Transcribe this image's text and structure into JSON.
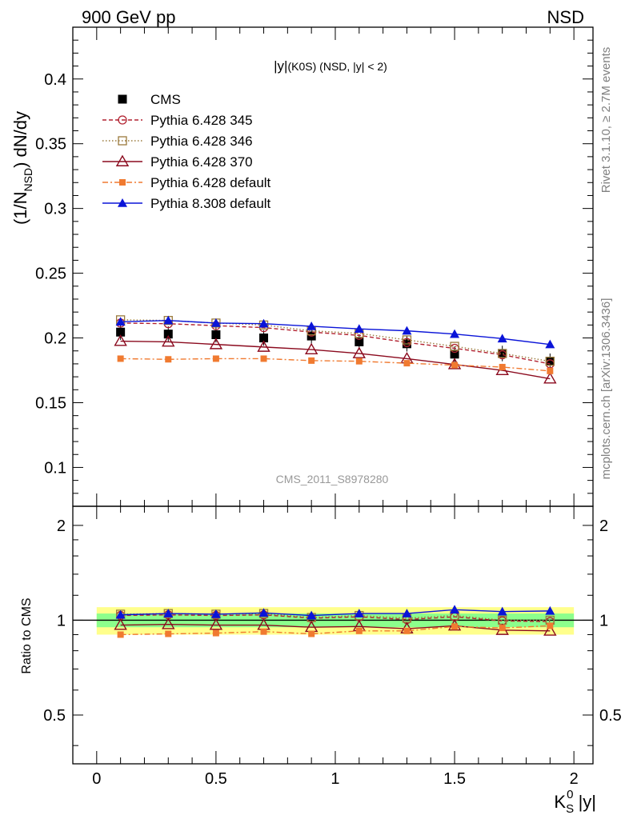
{
  "header": {
    "left": "900 GeV pp",
    "right": "NSD"
  },
  "side_text": {
    "rivet": "Rivet 3.1.10, ≥ 2.7M events",
    "mcplots": "mcplots.cern.ch [arXiv:1306.3436]"
  },
  "chart_data": [
    {
      "type": "line",
      "title": "|y|(K0S) (NSD, |y| < 2)",
      "ylabel": "(1/N_NSD) dN/dy",
      "watermark": "CMS_2011_S8978280",
      "xlim": [
        -0.1,
        2.08
      ],
      "ylim": [
        0.07,
        0.44
      ],
      "yticks": [
        0.1,
        0.15,
        0.2,
        0.25,
        0.3,
        0.35,
        0.4
      ],
      "ytick_labels": [
        "0.1",
        "0.15",
        "0.2",
        "0.25",
        "0.3",
        "0.35",
        "0.4"
      ],
      "legend_position": "top-left",
      "x": [
        0.1,
        0.3,
        0.5,
        0.7,
        0.9,
        1.1,
        1.3,
        1.5,
        1.7,
        1.9
      ],
      "series": [
        {
          "name": "CMS",
          "color": "#000000",
          "marker": "filled-square",
          "line": "none",
          "values": [
            0.2045,
            0.203,
            0.2025,
            0.2,
            0.2015,
            0.197,
            0.1955,
            0.1875,
            0.188,
            0.182
          ],
          "errors": [
            0.006,
            0.006,
            0.006,
            0.006,
            0.006,
            0.006,
            0.006,
            0.006,
            0.006,
            0.006
          ]
        },
        {
          "name": "Pythia 6.428 345",
          "color": "#b22230",
          "marker": "open-circle",
          "line": "dashed",
          "values": [
            0.2115,
            0.211,
            0.2095,
            0.208,
            0.2045,
            0.202,
            0.1965,
            0.192,
            0.187,
            0.18
          ]
        },
        {
          "name": "Pythia 6.428 346",
          "color": "#9a7a3c",
          "marker": "open-square",
          "line": "dotted",
          "values": [
            0.214,
            0.2135,
            0.2115,
            0.21,
            0.2055,
            0.2035,
            0.1985,
            0.1935,
            0.188,
            0.182
          ]
        },
        {
          "name": "Pythia 6.428 370",
          "color": "#8b0a1e",
          "marker": "open-triangle",
          "line": "solid",
          "values": [
            0.1975,
            0.197,
            0.195,
            0.193,
            0.191,
            0.188,
            0.184,
            0.1795,
            0.175,
            0.1685
          ]
        },
        {
          "name": "Pythia 6.428 default",
          "color": "#f07a30",
          "marker": "small-filled-square",
          "line": "dashdot",
          "values": [
            0.184,
            0.1835,
            0.184,
            0.184,
            0.1825,
            0.182,
            0.1805,
            0.179,
            0.1775,
            0.1745
          ]
        },
        {
          "name": "Pythia 8.308 default",
          "color": "#0a14d8",
          "marker": "filled-triangle",
          "line": "solid",
          "values": [
            0.2125,
            0.2135,
            0.2115,
            0.211,
            0.209,
            0.207,
            0.2055,
            0.203,
            0.1995,
            0.195
          ]
        }
      ]
    },
    {
      "type": "line",
      "ylabel": "Ratio to CMS",
      "xlabel": "K0S |y|",
      "xlim": [
        -0.1,
        2.08
      ],
      "ylim": [
        0.35,
        2.3
      ],
      "xticks": [
        0,
        0.5,
        1,
        1.5,
        2
      ],
      "xtick_labels": [
        "0",
        "0.5",
        "1",
        "1.5",
        "2"
      ],
      "yticks": [
        0.5,
        1,
        2
      ],
      "ytick_labels": [
        "0.5",
        "1",
        "2"
      ],
      "bands": [
        {
          "color": "#ffff8c",
          "lower": 0.9,
          "upper": 1.1,
          "xrange": [
            0.0,
            2.0
          ]
        },
        {
          "color": "#8cff8c",
          "lower": 0.95,
          "upper": 1.05,
          "xrange": [
            0.0,
            2.0
          ]
        }
      ],
      "reference_line": 1,
      "x": [
        0.1,
        0.3,
        0.5,
        0.7,
        0.9,
        1.1,
        1.3,
        1.5,
        1.7,
        1.9
      ],
      "series": [
        {
          "name": "Pythia 6.428 345",
          "values": [
            1.035,
            1.04,
            1.035,
            1.04,
            1.015,
            1.025,
            1.005,
            1.025,
            0.995,
            0.99
          ]
        },
        {
          "name": "Pythia 6.428 346",
          "values": [
            1.045,
            1.05,
            1.045,
            1.05,
            1.02,
            1.035,
            1.015,
            1.035,
            1.0,
            1.0
          ]
        },
        {
          "name": "Pythia 6.428 370",
          "values": [
            0.965,
            0.97,
            0.965,
            0.965,
            0.95,
            0.955,
            0.94,
            0.96,
            0.93,
            0.925
          ]
        },
        {
          "name": "Pythia 6.428 default",
          "values": [
            0.9,
            0.905,
            0.91,
            0.92,
            0.905,
            0.925,
            0.925,
            0.955,
            0.945,
            0.96
          ]
        },
        {
          "name": "Pythia 8.308 default",
          "values": [
            1.04,
            1.05,
            1.045,
            1.055,
            1.035,
            1.05,
            1.05,
            1.08,
            1.065,
            1.07
          ]
        }
      ]
    }
  ]
}
